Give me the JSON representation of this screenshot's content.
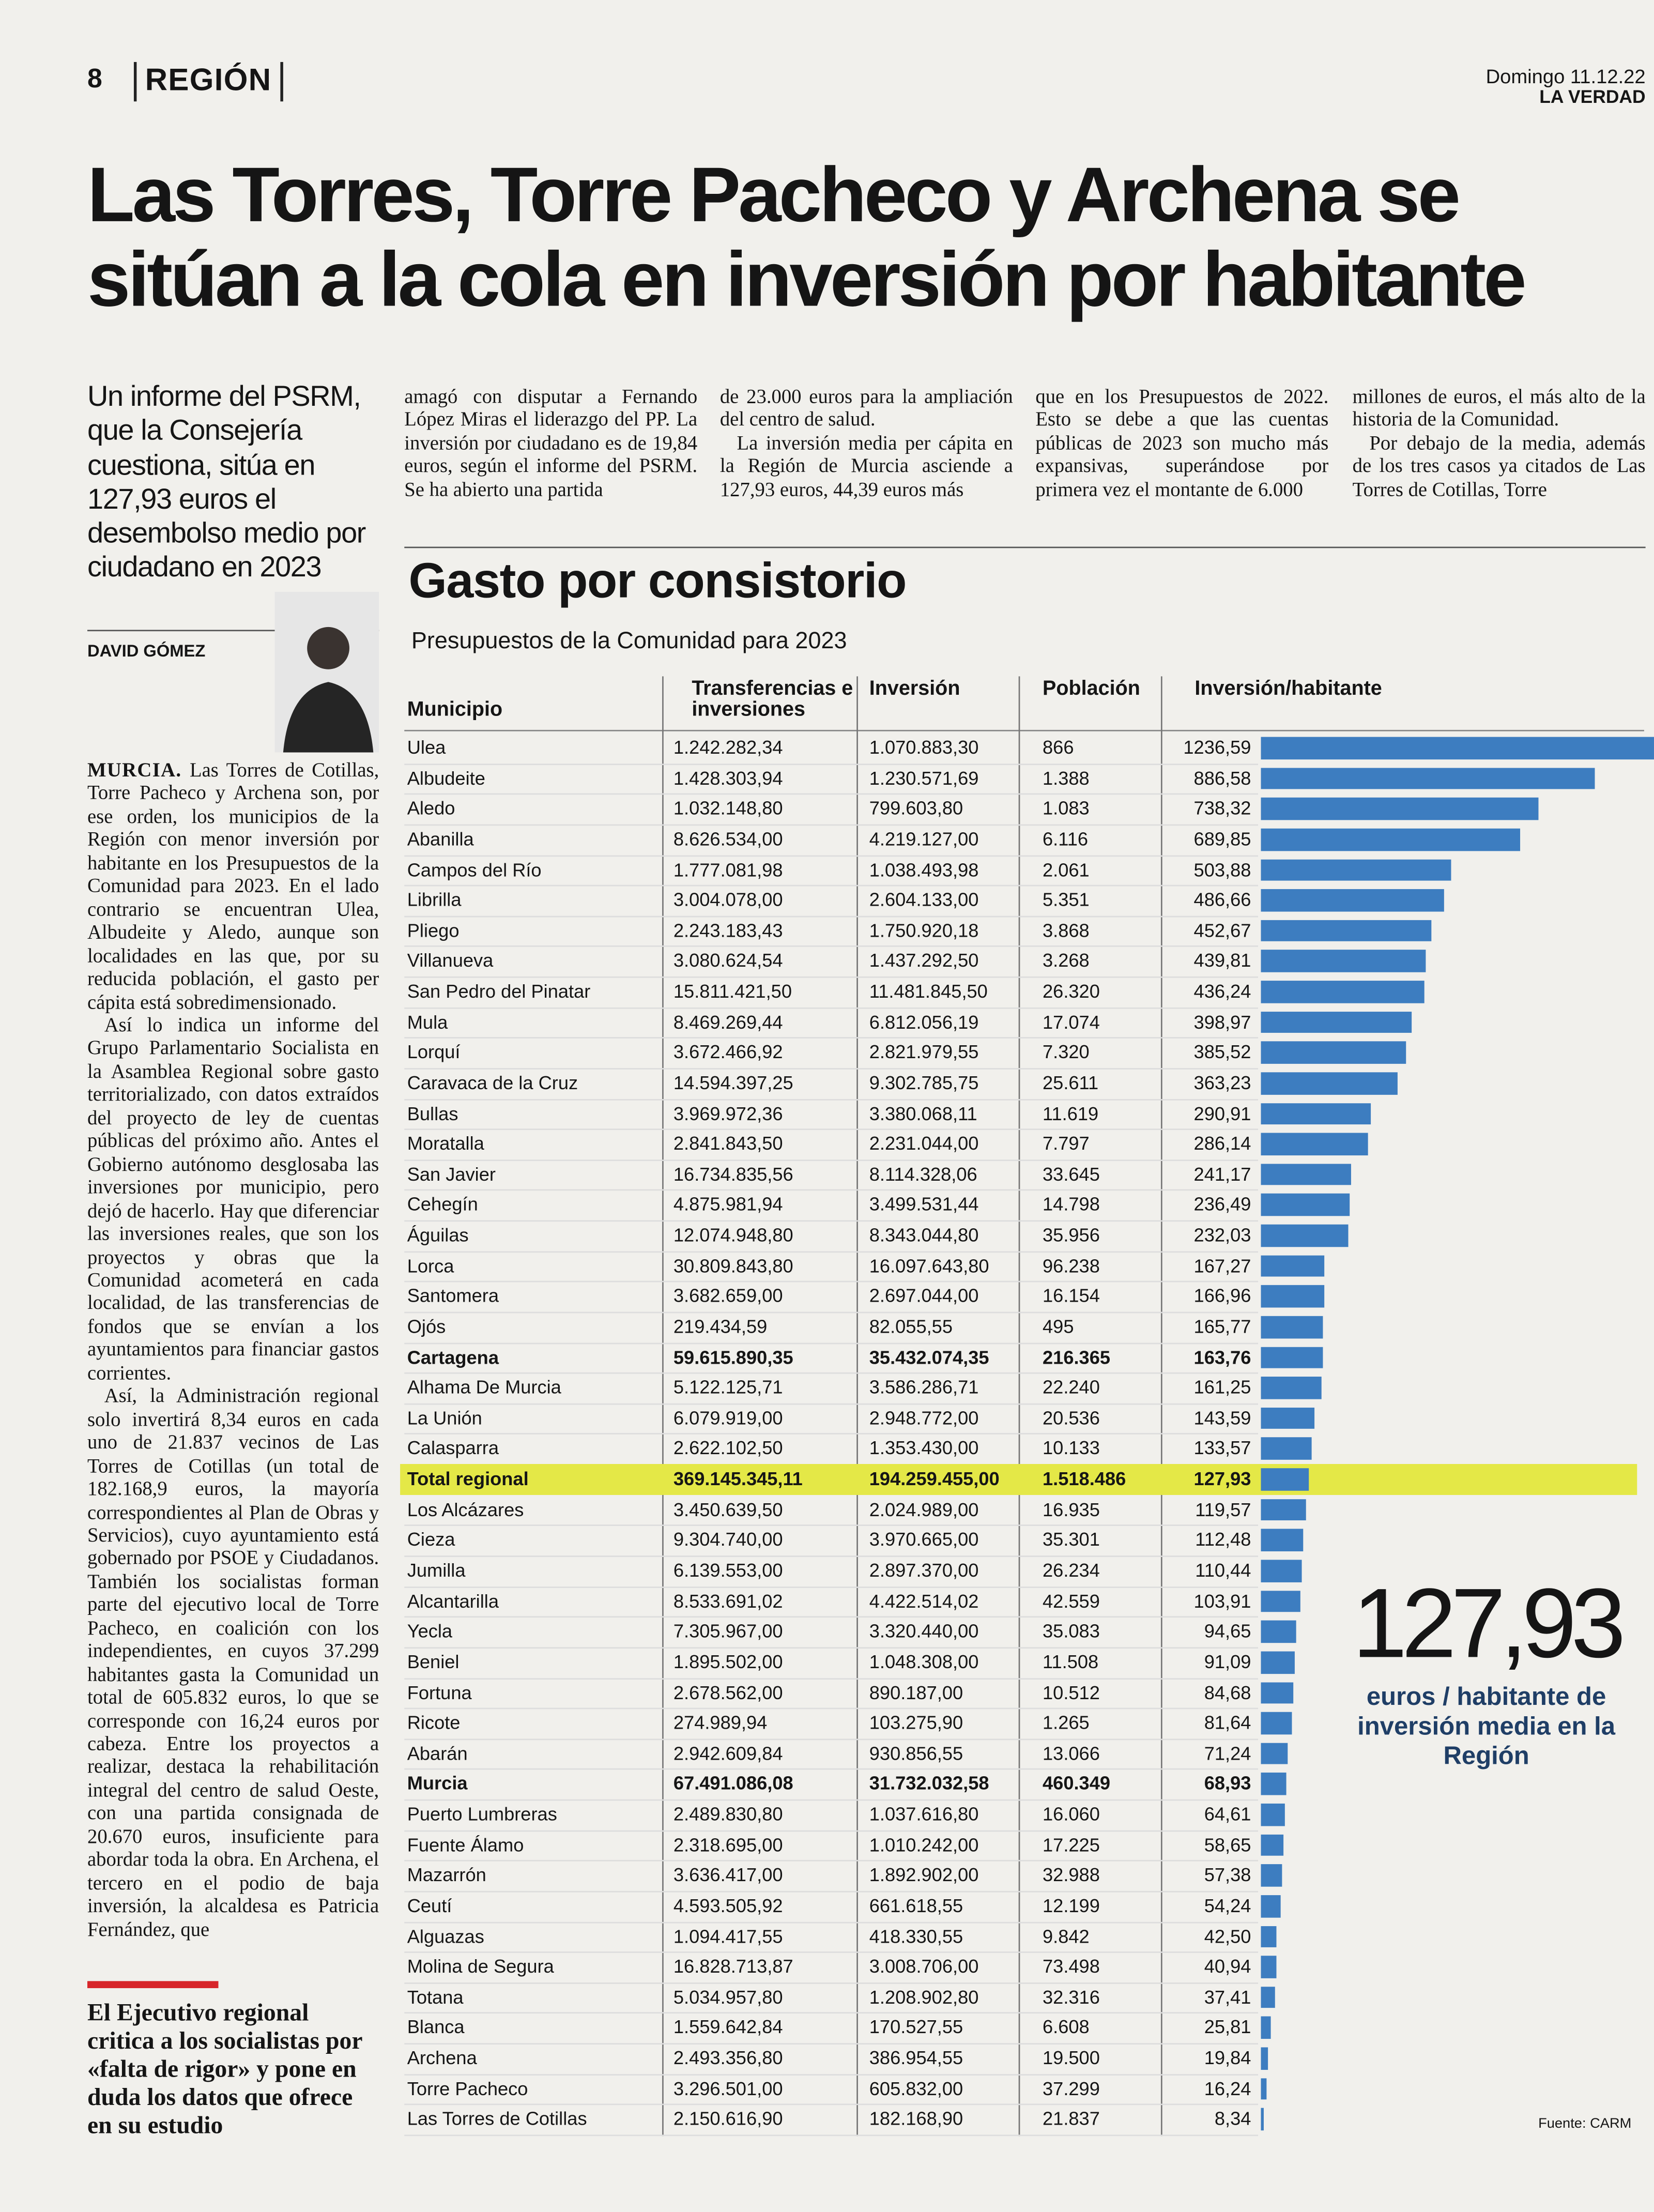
{
  "header": {
    "page": "8",
    "section": "REGIÓN",
    "date": "Domingo 11.12.22",
    "paper": "LA VERDAD"
  },
  "headline": "Las Torres, Torre Pacheco y Archena se sitúan a la cola en inversión por habitante",
  "subheadline": "Un informe del PSRM, que la Consejería cuestiona, sitúa en 127,93 euros el desembolso medio por ciudadano en 2023",
  "byline": "DAVID GÓMEZ",
  "article": {
    "dateline": "MURCIA.",
    "left_paragraphs": [
      "Las Torres de Cotillas, Torre Pacheco y Archena son, por ese orden, los municipios de la Región con menor inversión por habitante en los Presupuestos de la Comunidad para 2023. En el lado contrario se encuentran Ulea, Albudeite y Aledo, aunque son localidades en las que, por su reducida población, el gasto per cápita está sobredimensionado.",
      "Así lo indica un informe del Grupo Parlamentario Socialista en la Asamblea Regional sobre gasto territorializado, con datos extraídos del proyecto de ley de cuentas públicas del próximo año. Antes el Gobierno autónomo desglosaba las inversiones por municipio, pero dejó de hacerlo. Hay que diferenciar las inversiones reales, que son los proyectos y obras que la Comunidad acometerá en cada localidad, de las transferencias de fondos que se envían a los ayuntamientos para financiar gastos corrientes.",
      "Así, la Administración regional solo invertirá 8,34 euros en cada uno de 21.837 vecinos de Las Torres de Cotillas (un total de 182.168,9 euros, la mayoría correspondientes al Plan de Obras y Servicios), cuyo ayuntamiento está gobernado por PSOE y Ciudadanos. También los socialistas forman parte del ejecutivo local de Torre Pacheco, en coalición con los independientes, en cuyos 37.299 habitantes gasta la Comunidad un total de 605.832 euros, lo que se corresponde con 16,24 euros por cabeza. Entre los proyectos a realizar, destaca la rehabilitación integral del centro de salud Oeste, con una partida consignada de 20.670 euros, insuficiente para abordar toda la obra. En Archena, el tercero en el podio de baja inversión, la alcaldesa es Patricia Fernández, que"
    ],
    "top_columns": [
      [
        "amagó con disputar a Fernando López Miras el liderazgo del PP. La inversión por ciudadano es de 19,84 euros, según el informe del PSRM. Se ha abierto una partida"
      ],
      [
        "de 23.000 euros para la ampliación del centro de salud.",
        "La inversión media per cápita en la Región de Murcia asciende a 127,93 euros, 44,39 euros más"
      ],
      [
        "que en los Presupuestos de 2022. Esto se debe a que las cuentas públicas de 2023 son mucho más expansivas, superándose por primera vez el montante de 6.000"
      ],
      [
        "millones de euros, el más alto de la historia de la Comunidad.",
        "Por debajo de la media, además de los tres casos ya citados de Las Torres de Cotillas, Torre"
      ]
    ]
  },
  "pull_quote": "El Ejecutivo regional critica a los socialistas por «falta de rigor» y pone en duda los datos que ofrece en su estudio",
  "graphic": {
    "title": "Gasto por consistorio",
    "subtitle": "Presupuestos de la Comunidad para 2023",
    "columns": [
      "Municipio",
      "Transferencias e inversiones",
      "Inversión",
      "Población",
      "Inversión/habitante"
    ],
    "rows": [
      [
        "Ulea",
        "1.242.282,34",
        "1.070.883,30",
        "866"
      ],
      [
        "Albudeite",
        "1.428.303,94",
        "1.230.571,69",
        "1.388"
      ],
      [
        "Aledo",
        "1.032.148,80",
        "799.603,80",
        "1.083"
      ],
      [
        "Abanilla",
        "8.626.534,00",
        "4.219.127,00",
        "6.116"
      ],
      [
        "Campos del Río",
        "1.777.081,98",
        "1.038.493,98",
        "2.061"
      ],
      [
        "Librilla",
        "3.004.078,00",
        "2.604.133,00",
        "5.351"
      ],
      [
        "Pliego",
        "2.243.183,43",
        "1.750.920,18",
        "3.868"
      ],
      [
        "Villanueva",
        "3.080.624,54",
        "1.437.292,50",
        "3.268"
      ],
      [
        "San Pedro del Pinatar",
        "15.811.421,50",
        "11.481.845,50",
        "26.320"
      ],
      [
        "Mula",
        "8.469.269,44",
        "6.812.056,19",
        "17.074"
      ],
      [
        "Lorquí",
        "3.672.466,92",
        "2.821.979,55",
        "7.320"
      ],
      [
        "Caravaca de la Cruz",
        "14.594.397,25",
        "9.302.785,75",
        "25.611"
      ],
      [
        "Bullas",
        "3.969.972,36",
        "3.380.068,11",
        "11.619"
      ],
      [
        "Moratalla",
        "2.841.843,50",
        "2.231.044,00",
        "7.797"
      ],
      [
        "San Javier",
        "16.734.835,56",
        "8.114.328,06",
        "33.645"
      ],
      [
        "Cehegín",
        "4.875.981,94",
        "3.499.531,44",
        "14.798"
      ],
      [
        "Águilas",
        "12.074.948,80",
        "8.343.044,80",
        "35.956"
      ],
      [
        "Lorca",
        "30.809.843,80",
        "16.097.643,80",
        "96.238"
      ],
      [
        "Santomera",
        "3.682.659,00",
        "2.697.044,00",
        "16.154"
      ],
      [
        "Ojós",
        "219.434,59",
        "82.055,55",
        "495"
      ],
      [
        "Cartagena",
        "59.615.890,35",
        "35.432.074,35",
        "216.365"
      ],
      [
        "Alhama De Murcia",
        "5.122.125,71",
        "3.586.286,71",
        "22.240"
      ],
      [
        "La Unión",
        "6.079.919,00",
        "2.948.772,00",
        "20.536"
      ],
      [
        "Calasparra",
        "2.622.102,50",
        "1.353.430,00",
        "10.133"
      ],
      [
        "Total regional",
        "369.145.345,11",
        "194.259.455,00",
        "1.518.486"
      ],
      [
        "Los Alcázares",
        "3.450.639,50",
        "2.024.989,00",
        "16.935"
      ],
      [
        "Cieza",
        "9.304.740,00",
        "3.970.665,00",
        "35.301"
      ],
      [
        "Jumilla",
        "6.139.553,00",
        "2.897.370,00",
        "26.234"
      ],
      [
        "Alcantarilla",
        "8.533.691,02",
        "4.422.514,02",
        "42.559"
      ],
      [
        "Yecla",
        "7.305.967,00",
        "3.320.440,00",
        "35.083"
      ],
      [
        "Beniel",
        "1.895.502,00",
        "1.048.308,00",
        "11.508"
      ],
      [
        "Fortuna",
        "2.678.562,00",
        "890.187,00",
        "10.512"
      ],
      [
        "Ricote",
        "274.989,94",
        "103.275,90",
        "1.265"
      ],
      [
        "Abarán",
        "2.942.609,84",
        "930.856,55",
        "13.066"
      ],
      [
        "Murcia",
        "67.491.086,08",
        "31.732.032,58",
        "460.349"
      ],
      [
        "Puerto Lumbreras",
        "2.489.830,80",
        "1.037.616,80",
        "16.060"
      ],
      [
        "Fuente Álamo",
        "2.318.695,00",
        "1.010.242,00",
        "17.225"
      ],
      [
        "Mazarrón",
        "3.636.417,00",
        "1.892.902,00",
        "32.988"
      ],
      [
        "Ceutí",
        "4.593.505,92",
        "661.618,55",
        "12.199"
      ],
      [
        "Alguazas",
        "1.094.417,55",
        "418.330,55",
        "9.842"
      ],
      [
        "Molina de Segura",
        "16.828.713,87",
        "3.008.706,00",
        "73.498"
      ],
      [
        "Totana",
        "5.034.957,80",
        "1.208.902,80",
        "32.316"
      ],
      [
        "Blanca",
        "1.559.642,84",
        "170.527,55",
        "6.608"
      ],
      [
        "Archena",
        "2.493.356,80",
        "386.954,55",
        "19.500"
      ],
      [
        "Torre Pacheco",
        "3.296.501,00",
        "605.832,00",
        "37.299"
      ],
      [
        "Las Torres de Cotillas",
        "2.150.616,90",
        "182.168,90",
        "21.837"
      ]
    ],
    "inversion_habitante": {
      "values": [
        1236.59,
        886.58,
        738.32,
        689.85,
        503.88,
        486.66,
        452.67,
        439.81,
        436.24,
        398.97,
        385.52,
        363.23,
        290.91,
        286.14,
        241.17,
        236.49,
        232.03,
        167.27,
        166.96,
        165.77,
        163.76,
        161.25,
        143.59,
        133.57,
        127.93,
        119.57,
        112.48,
        110.44,
        103.91,
        94.65,
        91.09,
        84.68,
        81.64,
        71.24,
        68.93,
        64.61,
        58.65,
        57.38,
        54.24,
        42.5,
        40.94,
        37.41,
        25.81,
        19.84,
        16.24,
        8.34
      ],
      "value_labels": [
        "1236,59",
        "886,58",
        "738,32",
        "689,85",
        "503,88",
        "486,66",
        "452,67",
        "439,81",
        "436,24",
        "398,97",
        "385,52",
        "363,23",
        "290,91",
        "286,14",
        "241,17",
        "236,49",
        "232,03",
        "167,27",
        "166,96",
        "165,77",
        "163,76",
        "161,25",
        "143,59",
        "133,57",
        "127,93",
        "119,57",
        "112,48",
        "110,44",
        "103,91",
        "94,65",
        "91,09",
        "84,68",
        "81,64",
        "71,24",
        "68,93",
        "64,61",
        "58,65",
        "57,38",
        "54,24",
        "42,50",
        "40,94",
        "37,41",
        "25,81",
        "19,84",
        "16,24",
        "8,34"
      ]
    },
    "bold_rows": [
      20,
      24,
      34
    ],
    "highlight_row": 24,
    "color": "#3d7dc0",
    "highlight_color": "#e4e847",
    "callout": {
      "value": "127,93",
      "text": "euros / habitante de inversión media en la Región"
    },
    "source": "Fuente: CARM"
  }
}
